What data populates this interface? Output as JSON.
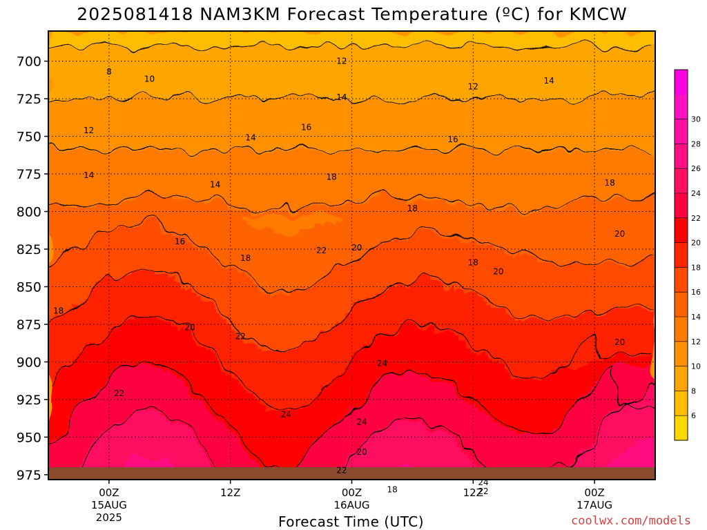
{
  "title": "2025081418 NAM3KM Forecast Temperature (ºC) for KMCW",
  "credit": "coolwx.com/models",
  "colors": {
    "ground": "#8b4a2e",
    "cbar": [
      "#ffd700",
      "#ffbd00",
      "#ffa500",
      "#ff9000",
      "#ff7a00",
      "#ff6200",
      "#ff4c00",
      "#ff2400",
      "#ff0000",
      "#ff0040",
      "#ff1060",
      "#ff1080",
      "#ff10a0",
      "#ff10c0",
      "#ff00e0"
    ]
  },
  "chart_data": {
    "type": "heatmap",
    "title": "2025081418 NAM3KM Forecast Temperature (ºC) for KMCW",
    "xlabel": "Forecast Time (UTC)",
    "ylabel": "",
    "yticks": [
      "700",
      "725",
      "750",
      "775",
      "800",
      "825",
      "850",
      "875",
      "900",
      "925",
      "950",
      "975"
    ],
    "ylim": [
      970,
      680
    ],
    "xticks": [
      {
        "label": "00Z",
        "sub1": "15AUG",
        "sub2": "2025",
        "hour": 6
      },
      {
        "label": "12Z",
        "sub1": "",
        "sub2": "",
        "hour": 18
      },
      {
        "label": "00Z",
        "sub1": "16AUG",
        "sub2": "",
        "hour": 30
      },
      {
        "label": "12Z",
        "sub1": "",
        "sub2": "",
        "hour": 42
      },
      {
        "label": "00Z",
        "sub1": "17AUG",
        "sub2": "",
        "hour": 54
      }
    ],
    "xlim": [
      0,
      60
    ],
    "colorbar_ticks": [
      "6",
      "8",
      "10",
      "12",
      "14",
      "16",
      "18",
      "20",
      "22",
      "24",
      "26",
      "28",
      "30"
    ],
    "contour_labels": [
      {
        "text": "8",
        "h": 6.0,
        "p": 707
      },
      {
        "text": "10",
        "h": 10.0,
        "p": 712
      },
      {
        "text": "12",
        "h": 29.0,
        "p": 700
      },
      {
        "text": "12",
        "h": 42.0,
        "p": 717
      },
      {
        "text": "14",
        "h": 29.0,
        "p": 724
      },
      {
        "text": "14",
        "h": 49.5,
        "p": 713
      },
      {
        "text": "12",
        "h": 4.0,
        "p": 746
      },
      {
        "text": "14",
        "h": 20.0,
        "p": 751
      },
      {
        "text": "16",
        "h": 25.5,
        "p": 744
      },
      {
        "text": "16",
        "h": 40.0,
        "p": 752
      },
      {
        "text": "14",
        "h": 4.0,
        "p": 776
      },
      {
        "text": "14",
        "h": 16.5,
        "p": 782
      },
      {
        "text": "18",
        "h": 28.0,
        "p": 777
      },
      {
        "text": "18",
        "h": 36.0,
        "p": 798
      },
      {
        "text": "18",
        "h": 55.5,
        "p": 781
      },
      {
        "text": "16",
        "h": 13.0,
        "p": 820
      },
      {
        "text": "18",
        "h": 19.5,
        "p": 831
      },
      {
        "text": "22",
        "h": 27.0,
        "p": 826
      },
      {
        "text": "20",
        "h": 30.5,
        "p": 824
      },
      {
        "text": "18",
        "h": 42.0,
        "p": 834
      },
      {
        "text": "20",
        "h": 56.5,
        "p": 815
      },
      {
        "text": "20",
        "h": 44.5,
        "p": 840
      },
      {
        "text": "18",
        "h": 1.0,
        "p": 866
      },
      {
        "text": "20",
        "h": 14.0,
        "p": 877
      },
      {
        "text": "22",
        "h": 19.0,
        "p": 883
      },
      {
        "text": "24",
        "h": 33.0,
        "p": 901
      },
      {
        "text": "20",
        "h": 56.5,
        "p": 887
      },
      {
        "text": "22",
        "h": 7.0,
        "p": 921
      },
      {
        "text": "24",
        "h": 23.5,
        "p": 935
      },
      {
        "text": "24",
        "h": 31.0,
        "p": 940
      },
      {
        "text": "20",
        "h": 31.0,
        "p": 960
      },
      {
        "text": "22",
        "h": 29.0,
        "p": 972
      },
      {
        "text": "18",
        "h": 34.0,
        "p": 985
      },
      {
        "text": "24",
        "h": 43.0,
        "p": 980
      },
      {
        "text": "22",
        "h": 43.0,
        "p": 986
      }
    ]
  }
}
